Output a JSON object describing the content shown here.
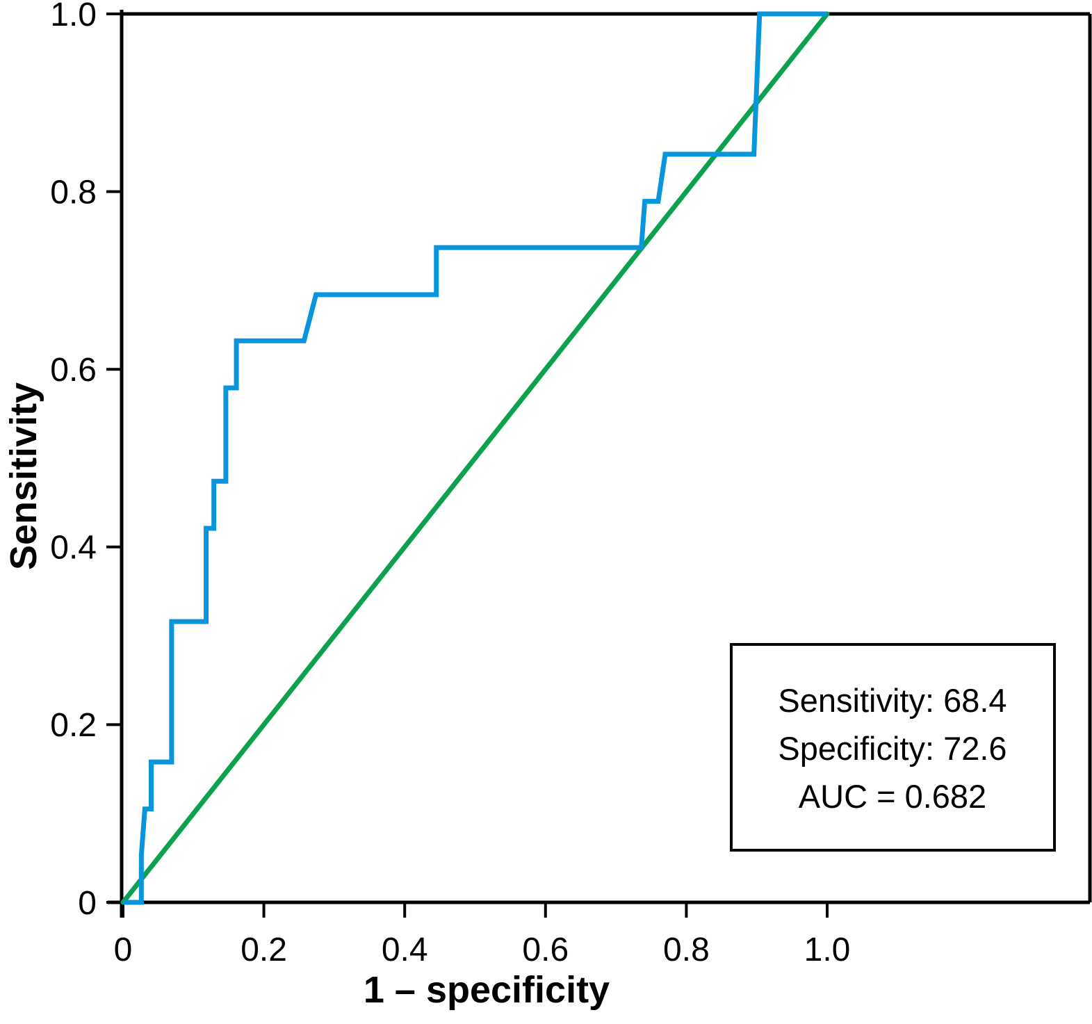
{
  "chart_data": {
    "type": "line",
    "title": "",
    "xlabel": "1 – specificity",
    "ylabel": "Sensitivity",
    "xlim": [
      0,
      1.37
    ],
    "ylim": [
      0,
      1.0
    ],
    "x_ticks": [
      0,
      0.2,
      0.4,
      0.6,
      0.8,
      1.0
    ],
    "y_ticks": [
      0,
      0.2,
      0.4,
      0.6,
      0.8,
      1.0
    ],
    "x_tick_labels": [
      "0",
      "0.2",
      "0.4",
      "0.6",
      "0.8",
      "1.0"
    ],
    "y_tick_labels": [
      "0",
      "0.2",
      "0.4",
      "0.6",
      "0.8",
      "1.0"
    ],
    "grid": false,
    "legend_position": "none",
    "series": [
      {
        "name": "ROC curve",
        "color": "#0995DC",
        "x": [
          0,
          0.026,
          0.026,
          0.031,
          0.04,
          0.04,
          0.069,
          0.069,
          0.118,
          0.118,
          0.129,
          0.129,
          0.146,
          0.146,
          0.161,
          0.161,
          0.257,
          0.274,
          0.445,
          0.445,
          0.736,
          0.741,
          0.76,
          0.77,
          0.896,
          0.904,
          1.0
        ],
        "y": [
          0,
          0,
          0.053,
          0.105,
          0.105,
          0.158,
          0.158,
          0.316,
          0.316,
          0.421,
          0.421,
          0.474,
          0.474,
          0.579,
          0.579,
          0.632,
          0.632,
          0.684,
          0.684,
          0.737,
          0.737,
          0.789,
          0.789,
          0.842,
          0.842,
          1.0,
          1.0
        ]
      },
      {
        "name": "Reference diagonal",
        "color": "#0CA14E",
        "x": [
          0,
          1.0
        ],
        "y": [
          0,
          1.0
        ]
      }
    ],
    "annotation": {
      "lines": [
        "Sensitivity: 68.4",
        "Specificity: 72.6",
        "AUC = 0.682"
      ]
    }
  },
  "colors": {
    "roc_curve": "#0995DC",
    "reference_line": "#0CA14E",
    "axes": "#000000",
    "background": "#ffffff"
  }
}
